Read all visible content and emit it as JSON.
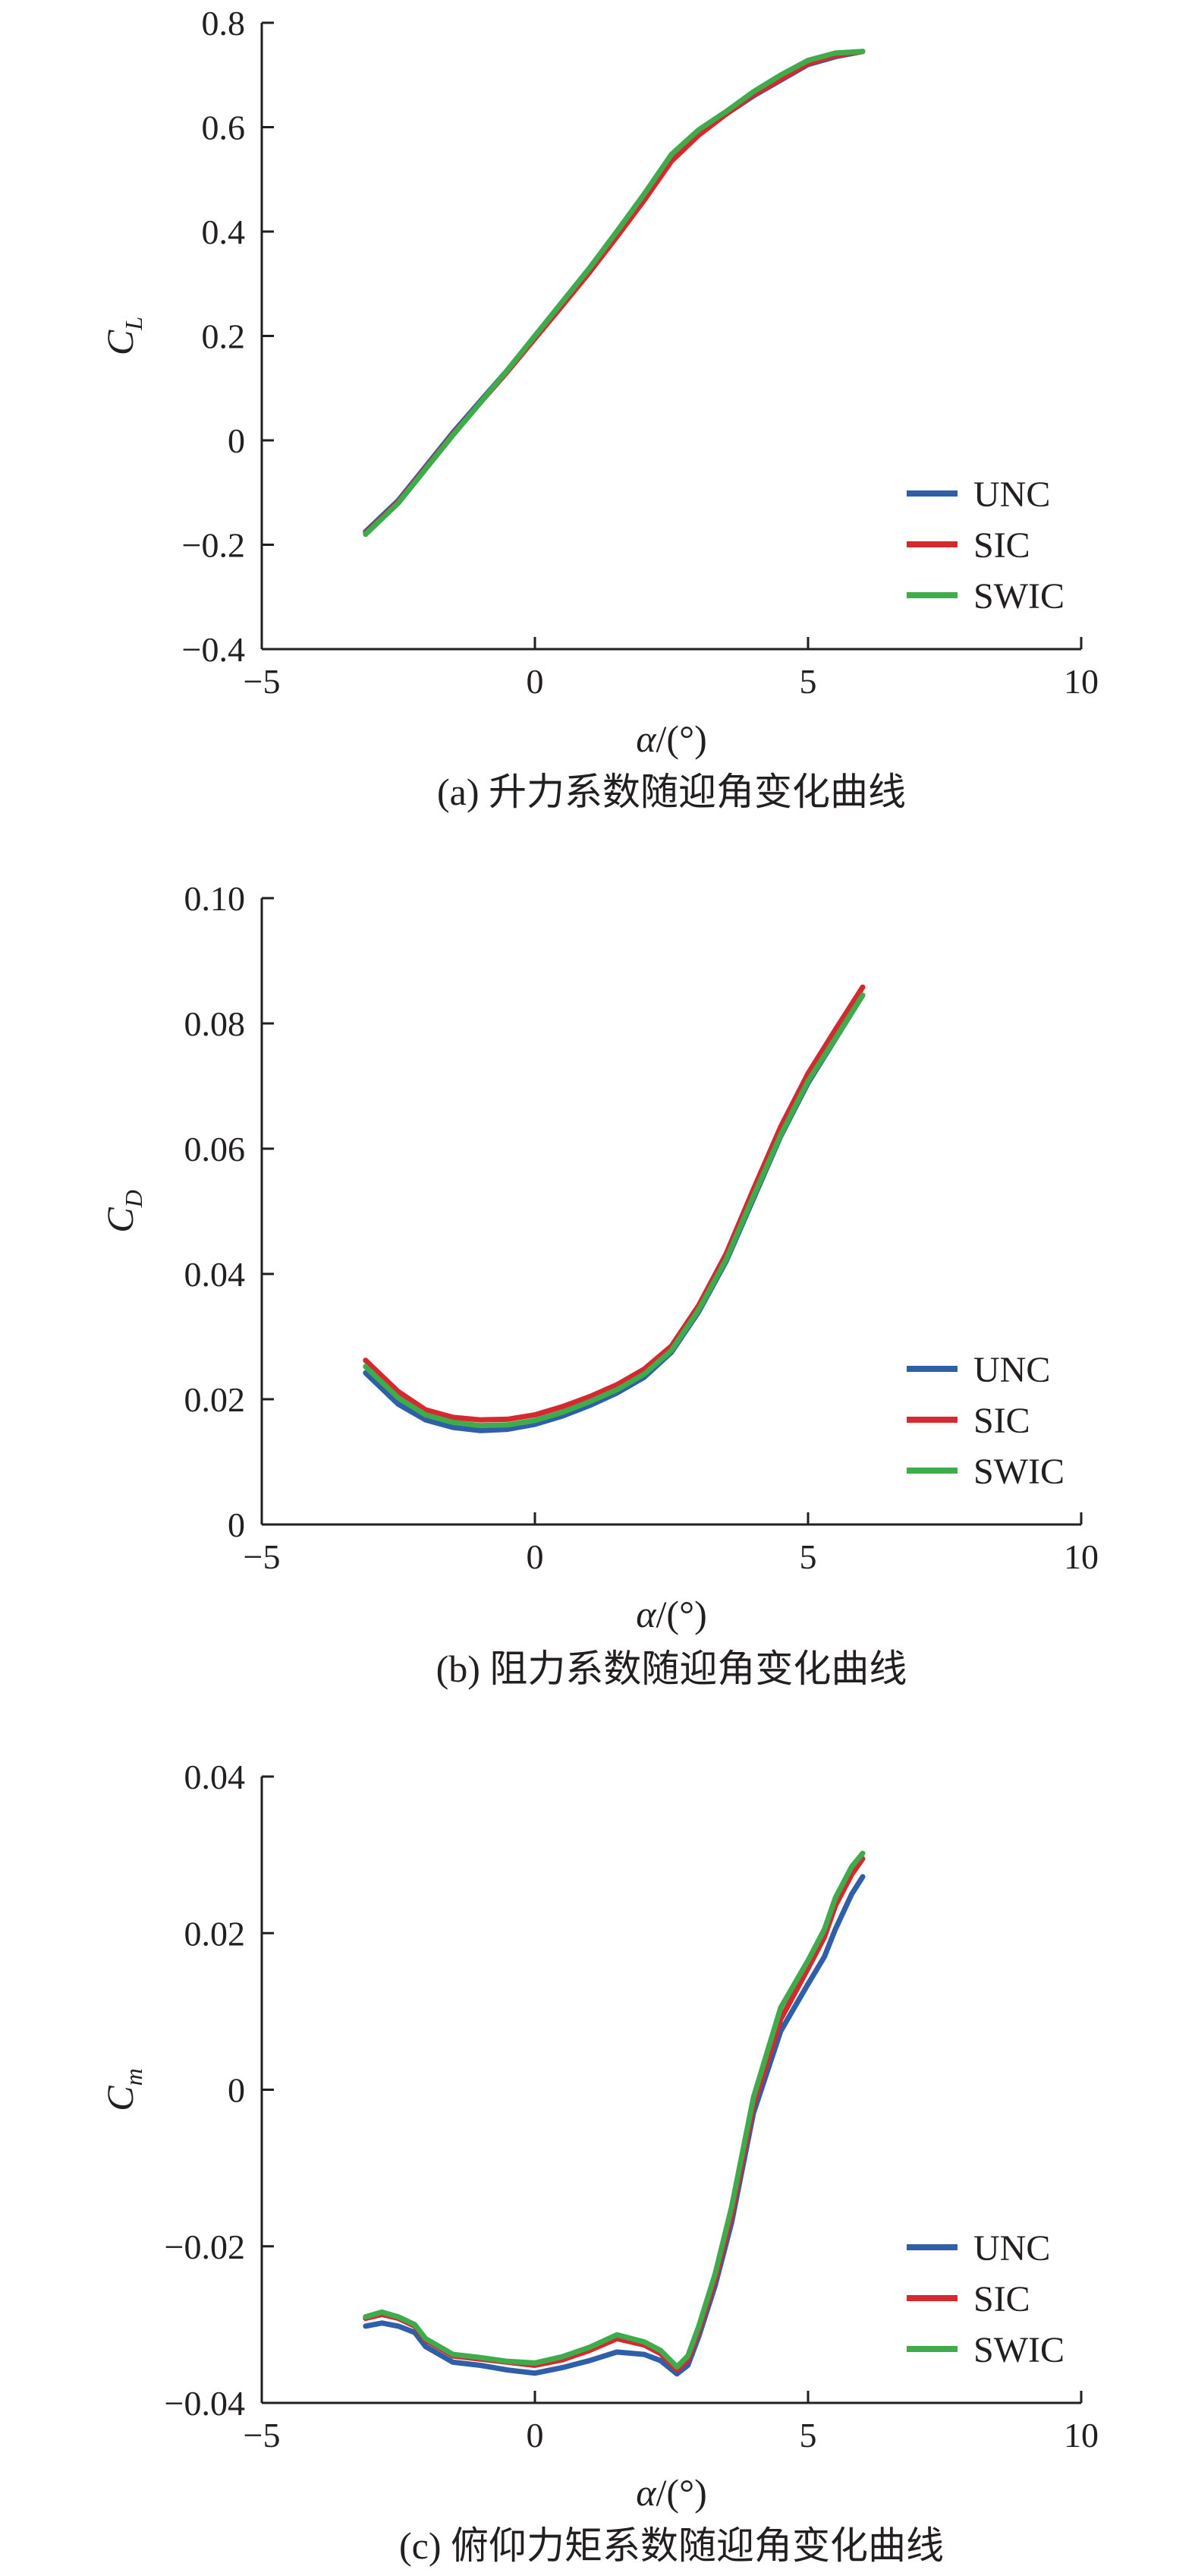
{
  "chart_data": [
    {
      "type": "line",
      "caption": "(a) 升力系数随迎角变化曲线",
      "ylabel_main": "C",
      "ylabel_sub": "L",
      "xlabel": "α/(°)",
      "xlim": [
        -5,
        10
      ],
      "ylim": [
        -0.4,
        0.8
      ],
      "xticks": [
        "−5",
        "0",
        "5",
        "10"
      ],
      "yticks": [
        "−0.4",
        "−0.2",
        "0",
        "0.2",
        "0.4",
        "0.6",
        "0.8"
      ],
      "legend_position": "bottom-right",
      "grid": false,
      "series": [
        {
          "name": "UNC",
          "color": "#2e5fa8",
          "x": [
            -3.1,
            -2.5,
            -2.0,
            -1.5,
            -1.0,
            -0.5,
            0.0,
            0.5,
            1.0,
            1.5,
            2.0,
            2.5,
            3.0,
            3.5,
            4.0,
            4.5,
            5.0,
            5.5,
            6.0
          ],
          "y": [
            -0.175,
            -0.115,
            -0.05,
            0.015,
            0.075,
            0.135,
            0.2,
            0.265,
            0.33,
            0.4,
            0.47,
            0.545,
            0.59,
            0.625,
            0.66,
            0.69,
            0.72,
            0.735,
            0.745
          ]
        },
        {
          "name": "SIC",
          "color": "#d7282f",
          "x": [
            -3.1,
            -2.5,
            -2.0,
            -1.5,
            -1.0,
            -0.5,
            0.0,
            0.5,
            1.0,
            1.5,
            2.0,
            2.5,
            3.0,
            3.5,
            4.0,
            4.5,
            5.0,
            5.5,
            6.0
          ],
          "y": [
            -0.178,
            -0.118,
            -0.053,
            0.012,
            0.072,
            0.132,
            0.195,
            0.258,
            0.322,
            0.39,
            0.46,
            0.535,
            0.585,
            0.625,
            0.662,
            0.692,
            0.722,
            0.737,
            0.745
          ]
        },
        {
          "name": "SWIC",
          "color": "#3eac4b",
          "x": [
            -3.1,
            -2.5,
            -2.0,
            -1.5,
            -1.0,
            -0.5,
            0.0,
            0.5,
            1.0,
            1.5,
            2.0,
            2.5,
            3.0,
            3.5,
            4.0,
            4.5,
            5.0,
            5.5,
            6.0
          ],
          "y": [
            -0.18,
            -0.12,
            -0.055,
            0.01,
            0.072,
            0.135,
            0.2,
            0.265,
            0.33,
            0.4,
            0.472,
            0.548,
            0.595,
            0.63,
            0.668,
            0.7,
            0.728,
            0.742,
            0.745
          ]
        }
      ]
    },
    {
      "type": "line",
      "caption": "(b) 阻力系数随迎角变化曲线",
      "ylabel_main": "C",
      "ylabel_sub": "D",
      "xlabel": "α/(°)",
      "xlim": [
        -5,
        10
      ],
      "ylim": [
        0,
        0.1
      ],
      "xticks": [
        "−5",
        "0",
        "5",
        "10"
      ],
      "yticks": [
        "0",
        "0.02",
        "0.04",
        "0.06",
        "0.08",
        "0.10"
      ],
      "legend_position": "bottom-right",
      "grid": false,
      "series": [
        {
          "name": "UNC",
          "color": "#2e5fa8",
          "x": [
            -3.1,
            -2.5,
            -2.0,
            -1.5,
            -1.0,
            -0.5,
            0.0,
            0.5,
            1.0,
            1.5,
            2.0,
            2.5,
            3.0,
            3.5,
            4.0,
            4.5,
            5.0,
            5.5,
            6.0
          ],
          "y": [
            0.0242,
            0.0192,
            0.0167,
            0.0155,
            0.015,
            0.0152,
            0.016,
            0.0173,
            0.019,
            0.021,
            0.0235,
            0.0275,
            0.034,
            0.042,
            0.052,
            0.062,
            0.0705,
            0.0775,
            0.0845
          ]
        },
        {
          "name": "SIC",
          "color": "#d7282f",
          "x": [
            -3.1,
            -2.5,
            -2.0,
            -1.5,
            -1.0,
            -0.5,
            0.0,
            0.5,
            1.0,
            1.5,
            2.0,
            2.5,
            3.0,
            3.5,
            4.0,
            4.5,
            5.0,
            5.5,
            6.0
          ],
          "y": [
            0.0262,
            0.0212,
            0.0183,
            0.0171,
            0.0167,
            0.0168,
            0.0175,
            0.0188,
            0.0204,
            0.0223,
            0.0248,
            0.0285,
            0.035,
            0.0432,
            0.0535,
            0.0635,
            0.072,
            0.079,
            0.0858
          ]
        },
        {
          "name": "SWIC",
          "color": "#3eac4b",
          "x": [
            -3.1,
            -2.5,
            -2.0,
            -1.5,
            -1.0,
            -0.5,
            0.0,
            0.5,
            1.0,
            1.5,
            2.0,
            2.5,
            3.0,
            3.5,
            4.0,
            4.5,
            5.0,
            5.5,
            6.0
          ],
          "y": [
            0.0252,
            0.0202,
            0.0175,
            0.0163,
            0.0158,
            0.0159,
            0.0166,
            0.0179,
            0.0196,
            0.0215,
            0.024,
            0.0278,
            0.0343,
            0.0423,
            0.0524,
            0.0622,
            0.0708,
            0.0776,
            0.0845
          ]
        }
      ]
    },
    {
      "type": "line",
      "caption": "(c) 俯仰力矩系数随迎角变化曲线",
      "ylabel_main": "C",
      "ylabel_sub": "m",
      "xlabel": "α/(°)",
      "xlim": [
        -5,
        10
      ],
      "ylim": [
        -0.04,
        0.04
      ],
      "xticks": [
        "−5",
        "0",
        "5",
        "10"
      ],
      "yticks": [
        "−0.04",
        "−0.02",
        "0",
        "0.02",
        "0.04"
      ],
      "legend_position": "bottom-right",
      "grid": false,
      "series": [
        {
          "name": "UNC",
          "color": "#2e5fa8",
          "x": [
            -3.1,
            -2.8,
            -2.5,
            -2.2,
            -2.0,
            -1.5,
            -1.0,
            -0.5,
            0.0,
            0.5,
            1.0,
            1.5,
            2.0,
            2.3,
            2.6,
            2.8,
            3.0,
            3.3,
            3.6,
            4.0,
            4.5,
            5.0,
            5.3,
            5.5,
            5.8,
            6.0
          ],
          "y": [
            -0.0302,
            -0.0298,
            -0.0302,
            -0.031,
            -0.0328,
            -0.0348,
            -0.0352,
            -0.0358,
            -0.0362,
            -0.0355,
            -0.0346,
            -0.0335,
            -0.0338,
            -0.0346,
            -0.0363,
            -0.0352,
            -0.0315,
            -0.025,
            -0.017,
            -0.003,
            0.0075,
            0.0135,
            0.017,
            0.0205,
            0.025,
            0.0272
          ]
        },
        {
          "name": "SIC",
          "color": "#d7282f",
          "x": [
            -3.1,
            -2.8,
            -2.5,
            -2.2,
            -2.0,
            -1.5,
            -1.0,
            -0.5,
            0.0,
            0.5,
            1.0,
            1.5,
            2.0,
            2.3,
            2.6,
            2.8,
            3.0,
            3.3,
            3.6,
            4.0,
            4.5,
            5.0,
            5.3,
            5.5,
            5.8,
            6.0
          ],
          "y": [
            -0.0292,
            -0.0287,
            -0.0292,
            -0.0302,
            -0.032,
            -0.034,
            -0.0344,
            -0.0348,
            -0.0352,
            -0.0345,
            -0.0333,
            -0.0318,
            -0.0326,
            -0.0337,
            -0.0358,
            -0.0345,
            -0.0308,
            -0.0242,
            -0.016,
            -0.002,
            0.009,
            0.0155,
            0.0195,
            0.0235,
            0.0275,
            0.0295
          ]
        },
        {
          "name": "SWIC",
          "color": "#3eac4b",
          "x": [
            -3.1,
            -2.8,
            -2.5,
            -2.2,
            -2.0,
            -1.5,
            -1.0,
            -0.5,
            0.0,
            0.5,
            1.0,
            1.5,
            2.0,
            2.3,
            2.6,
            2.8,
            3.0,
            3.3,
            3.6,
            4.0,
            4.5,
            5.0,
            5.3,
            5.5,
            5.8,
            6.0
          ],
          "y": [
            -0.029,
            -0.0284,
            -0.029,
            -0.03,
            -0.0318,
            -0.0338,
            -0.0342,
            -0.0347,
            -0.0349,
            -0.0341,
            -0.0329,
            -0.0313,
            -0.0322,
            -0.0333,
            -0.0354,
            -0.034,
            -0.0302,
            -0.0235,
            -0.015,
            -0.001,
            0.0105,
            0.0165,
            0.0205,
            0.0245,
            0.0285,
            0.0302
          ]
        }
      ]
    }
  ]
}
